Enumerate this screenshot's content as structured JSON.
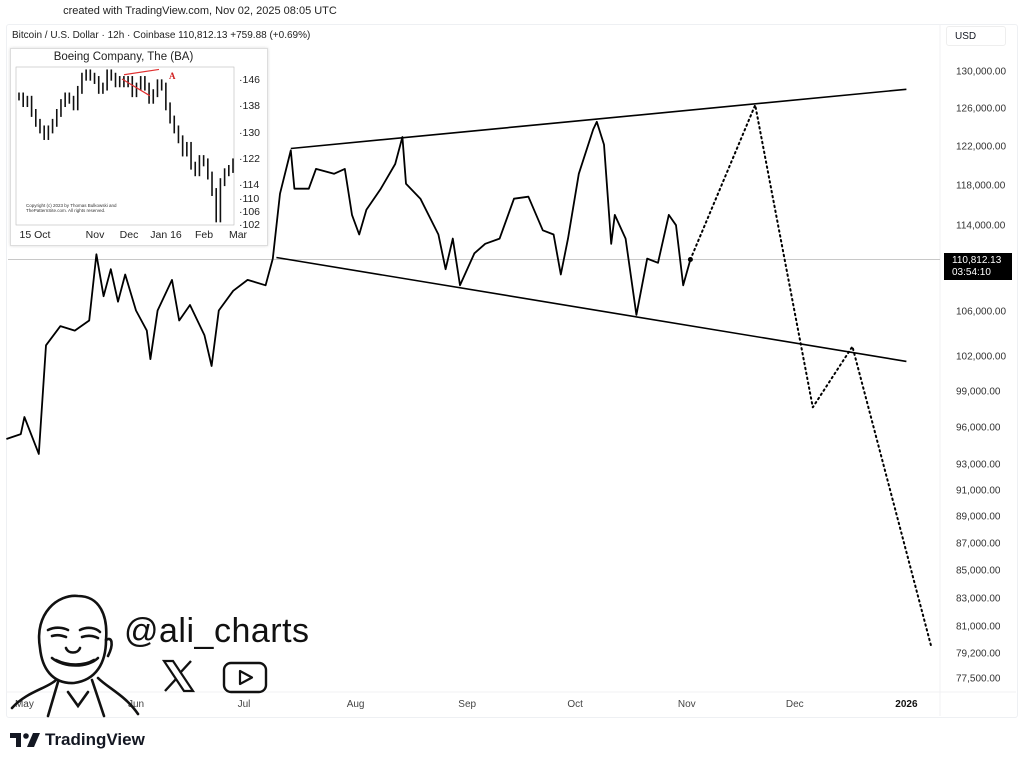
{
  "header": {
    "created": "created with TradingView.com, Nov 02, 2025 08:05 UTC",
    "ticker_line": "Bitcoin / U.S. Dollar · 12h · Coinbase  110,812.13  +759.88 (+0.69%)",
    "currency": "USD"
  },
  "current_price": {
    "price": "110,812.13",
    "countdown": "03:54:10"
  },
  "branding": {
    "handle": "@ali_charts",
    "logo_text": "TradingView",
    "icons": [
      "x-logo-icon",
      "youtube-icon",
      "avatar-illustration"
    ]
  },
  "colors": {
    "price_line": "#000000",
    "trendline": "#000000",
    "projection": "#000000",
    "current_line": "#c8c8c8",
    "inset_trendline": "#e03030"
  },
  "chart_data": [
    {
      "type": "line",
      "title": "Bitcoin / U.S. Dollar · 12h · Coinbase",
      "y_scale": "log",
      "ylim": [
        77500,
        130000
      ],
      "xlim": [
        "2025-04-24",
        "2026-01-10"
      ],
      "grid": false,
      "y_ticks": [
        "130,000.00",
        "126,000.00",
        "122,000.00",
        "118,000.00",
        "114,000.00",
        "106,000.00",
        "102,000.00",
        "99,000.00",
        "96,000.00",
        "93,000.00",
        "91,000.00",
        "89,000.00",
        "87,000.00",
        "85,000.00",
        "83,000.00",
        "81,000.00",
        "79,200.00",
        "77,500.00"
      ],
      "x_ticks": [
        {
          "label": "May",
          "date": "2025-05-01"
        },
        {
          "label": "Jun",
          "date": "2025-06-01"
        },
        {
          "label": "Jul",
          "date": "2025-07-01"
        },
        {
          "label": "Aug",
          "date": "2025-08-01"
        },
        {
          "label": "Sep",
          "date": "2025-09-01"
        },
        {
          "label": "Oct",
          "date": "2025-10-01"
        },
        {
          "label": "Nov",
          "date": "2025-11-01"
        },
        {
          "label": "Dec",
          "date": "2025-12-01"
        },
        {
          "label": "2026",
          "date": "2026-01-01",
          "bold": true
        }
      ],
      "series": [
        {
          "points": [
            [
              "2025-04-26",
              95100
            ],
            [
              "2025-04-30",
              95500
            ],
            [
              "2025-05-01",
              96900
            ],
            [
              "2025-05-05",
              93900
            ],
            [
              "2025-05-07",
              103000
            ],
            [
              "2025-05-11",
              104700
            ],
            [
              "2025-05-15",
              104300
            ],
            [
              "2025-05-19",
              105200
            ],
            [
              "2025-05-21",
              111300
            ],
            [
              "2025-05-23",
              107400
            ],
            [
              "2025-05-25",
              109900
            ],
            [
              "2025-05-27",
              106900
            ],
            [
              "2025-05-29",
              109400
            ],
            [
              "2025-06-01",
              106100
            ],
            [
              "2025-06-04",
              104300
            ],
            [
              "2025-06-05",
              101800
            ],
            [
              "2025-06-07",
              106100
            ],
            [
              "2025-06-11",
              108900
            ],
            [
              "2025-06-13",
              105200
            ],
            [
              "2025-06-16",
              106600
            ],
            [
              "2025-06-20",
              103900
            ],
            [
              "2025-06-22",
              101200
            ],
            [
              "2025-06-24",
              106100
            ],
            [
              "2025-06-28",
              107900
            ],
            [
              "2025-07-02",
              108900
            ],
            [
              "2025-07-07",
              108400
            ],
            [
              "2025-07-09",
              110900
            ],
            [
              "2025-07-11",
              117200
            ],
            [
              "2025-07-14",
              121600
            ],
            [
              "2025-07-15",
              117700
            ],
            [
              "2025-07-19",
              117700
            ],
            [
              "2025-07-21",
              119700
            ],
            [
              "2025-07-26",
              119200
            ],
            [
              "2025-07-29",
              119700
            ],
            [
              "2025-07-31",
              115100
            ],
            [
              "2025-08-02",
              113200
            ],
            [
              "2025-08-04",
              115600
            ],
            [
              "2025-08-08",
              117700
            ],
            [
              "2025-08-12",
              120200
            ],
            [
              "2025-08-14",
              123000
            ],
            [
              "2025-08-15",
              118200
            ],
            [
              "2025-08-19",
              116700
            ],
            [
              "2025-08-24",
              113200
            ],
            [
              "2025-08-26",
              109900
            ],
            [
              "2025-08-28",
              112800
            ],
            [
              "2025-08-30",
              108400
            ],
            [
              "2025-09-03",
              111400
            ],
            [
              "2025-09-06",
              112300
            ],
            [
              "2025-09-10",
              112800
            ],
            [
              "2025-09-14",
              116700
            ],
            [
              "2025-09-18",
              116900
            ],
            [
              "2025-09-22",
              113600
            ],
            [
              "2025-09-25",
              113200
            ],
            [
              "2025-09-27",
              109400
            ],
            [
              "2025-09-29",
              112800
            ],
            [
              "2025-10-02",
              119200
            ],
            [
              "2025-10-06",
              123800
            ],
            [
              "2025-10-07",
              124600
            ],
            [
              "2025-10-09",
              122200
            ],
            [
              "2025-10-11",
              112300
            ],
            [
              "2025-10-12",
              115100
            ],
            [
              "2025-10-15",
              112800
            ],
            [
              "2025-10-18",
              105700
            ],
            [
              "2025-10-21",
              110900
            ],
            [
              "2025-10-24",
              110500
            ],
            [
              "2025-10-27",
              115100
            ],
            [
              "2025-10-29",
              114100
            ],
            [
              "2025-10-31",
              108400
            ],
            [
              "2025-11-02",
              110812.13
            ]
          ]
        },
        {
          "kind": "trendline-upper",
          "points": [
            [
              "2025-07-14",
              121800
            ],
            [
              "2026-01-01",
              128100
            ]
          ]
        },
        {
          "kind": "trendline-lower",
          "points": [
            [
              "2025-07-10",
              111000
            ],
            [
              "2026-01-01",
              101600
            ]
          ]
        },
        {
          "kind": "projection-dotted",
          "points": [
            [
              "2025-11-02",
              110812.13
            ],
            [
              "2025-11-20",
              126400
            ],
            [
              "2025-12-06",
              97700
            ],
            [
              "2025-12-17",
              102900
            ],
            [
              "2026-01-08",
              79600
            ]
          ]
        }
      ]
    },
    {
      "type": "line",
      "title": "Boeing Company, The (BA)",
      "ylim": [
        102,
        148
      ],
      "y_ticks": [
        "146",
        "138",
        "130",
        "122",
        "114",
        "110",
        "106",
        "102"
      ],
      "x_ticks": [
        "15 Oct",
        "Nov",
        "Dec",
        "Jan 16",
        "Feb",
        "Mar"
      ],
      "annotation": "A",
      "copyright": "Copyright (c) 2023 by Thomas Bulkowski and ThePatternSite.com. All rights reserved.",
      "values": [
        141,
        139,
        140,
        136,
        133,
        131,
        129,
        131,
        133,
        136,
        139,
        141,
        140,
        138,
        143,
        147,
        148,
        147,
        146,
        143,
        144,
        148,
        147,
        145,
        146,
        145,
        146,
        142,
        144,
        146,
        144,
        140,
        142,
        145,
        144,
        138,
        134,
        131,
        128,
        124,
        126,
        120,
        118,
        122,
        121,
        117,
        112,
        104,
        115,
        118,
        119,
        121
      ]
    }
  ]
}
